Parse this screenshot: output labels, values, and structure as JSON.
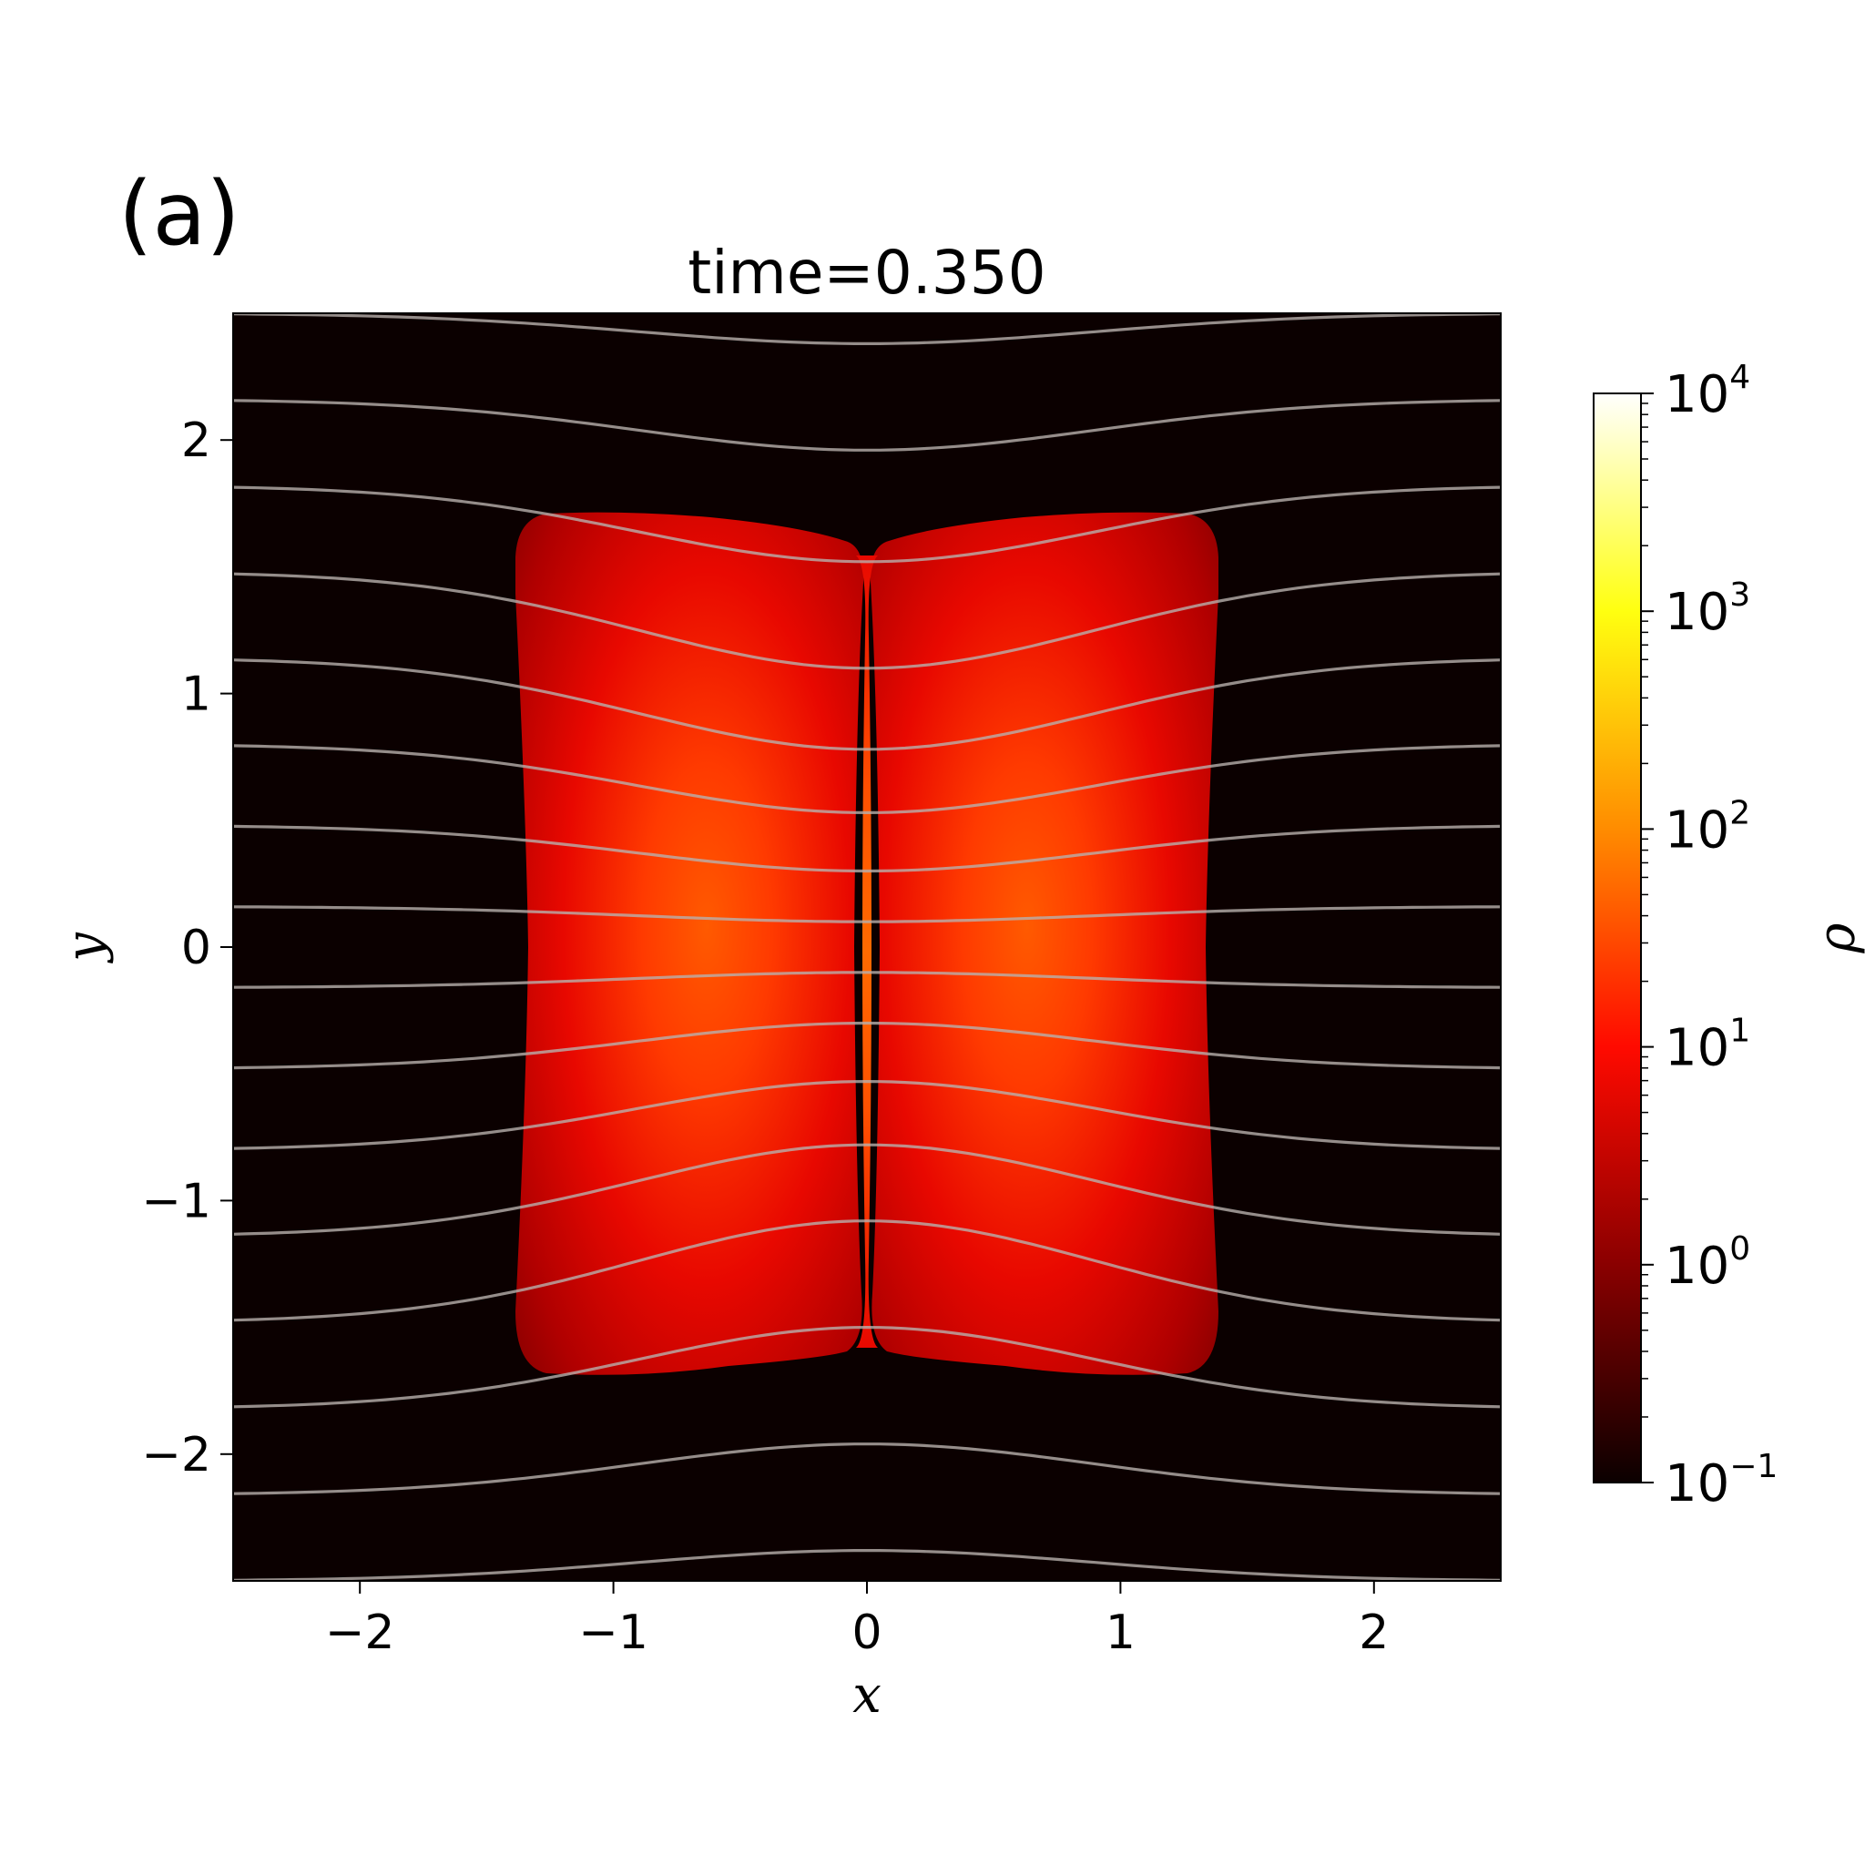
{
  "panel_label": "(a)",
  "chart_data": {
    "type": "heatmap",
    "title": "time=0.350",
    "xlabel": "x",
    "ylabel": "y",
    "xlim": [
      -2.5,
      2.5
    ],
    "ylim": [
      -2.5,
      2.5
    ],
    "xticks": [
      -2,
      -1,
      0,
      1,
      2
    ],
    "yticks": [
      -2,
      -1,
      0,
      1,
      2
    ],
    "xtick_labels": [
      "−2",
      "−1",
      "0",
      "1",
      "2"
    ],
    "ytick_labels": [
      "−2",
      "−1",
      "0",
      "1",
      "2"
    ],
    "colormap": "hot",
    "colorbar": {
      "label": "ρ",
      "scale": "log",
      "range": [
        0.1,
        10000
      ],
      "ticks": [
        {
          "base": "10",
          "exp": "−1",
          "value": 0.1
        },
        {
          "base": "10",
          "exp": "0",
          "value": 1
        },
        {
          "base": "10",
          "exp": "1",
          "value": 10
        },
        {
          "base": "10",
          "exp": "2",
          "value": 100
        },
        {
          "base": "10",
          "exp": "3",
          "value": 1000
        },
        {
          "base": "10",
          "exp": "4",
          "value": 10000
        }
      ]
    },
    "background_density": 0.1,
    "dense_region": {
      "x_extent": [
        -1.38,
        1.38
      ],
      "y_extent": [
        -1.7,
        1.7
      ],
      "peak_density": 60,
      "central_gap_x": 0.0
    },
    "field_lines": {
      "color": "#b8b0ad",
      "y_at_edge": [
        2.5,
        2.16,
        1.82,
        1.48,
        1.14,
        0.8,
        0.48,
        0.16,
        -0.16,
        -0.48,
        -0.8,
        -1.14,
        -1.48,
        -1.82,
        -2.16,
        -2.5
      ],
      "y_at_center": [
        2.38,
        1.96,
        1.52,
        1.1,
        0.78,
        0.53,
        0.3,
        0.1,
        -0.1,
        -0.3,
        -0.53,
        -0.78,
        -1.08,
        -1.5,
        -1.96,
        -2.38
      ]
    }
  }
}
